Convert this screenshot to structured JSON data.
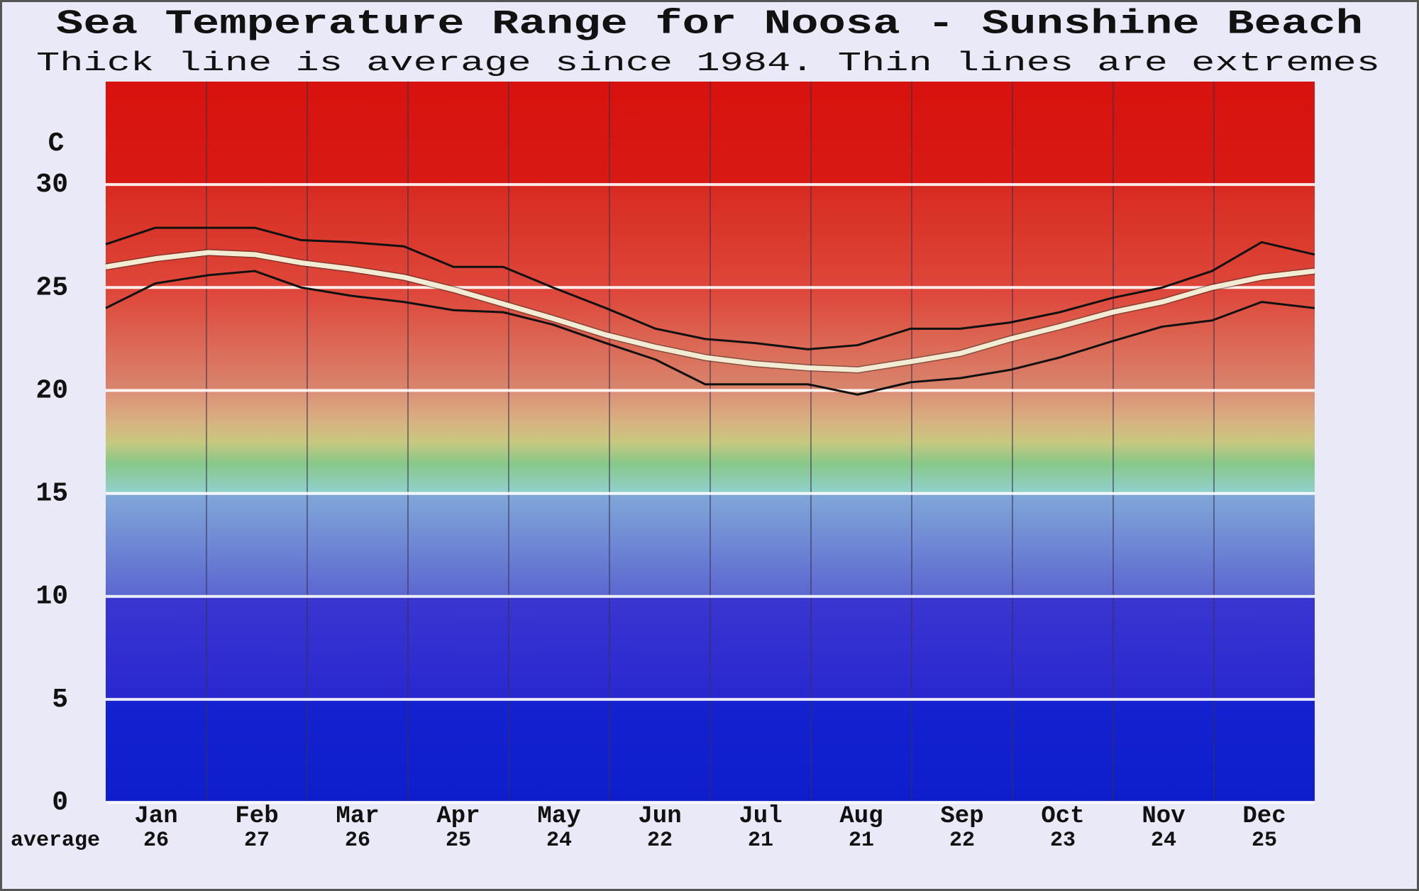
{
  "chart_data": {
    "type": "line",
    "title": "Sea Temperature Range for Noosa - Sunshine Beach",
    "subtitle": "Thick line is average since 1984. Thin lines are extremes",
    "y_label": "C",
    "categories": [
      "Jan",
      "Feb",
      "Mar",
      "Apr",
      "May",
      "Jun",
      "Jul",
      "Aug",
      "Sep",
      "Oct",
      "Nov",
      "Dec"
    ],
    "average_label": "average",
    "monthly_averages": [
      26,
      27,
      26,
      25,
      24,
      22,
      21,
      21,
      22,
      23,
      24,
      25
    ],
    "x": [
      0,
      15,
      31,
      45,
      59,
      74,
      90,
      105,
      120,
      135,
      151,
      166,
      181,
      196,
      212,
      227,
      243,
      258,
      273,
      288,
      304,
      319,
      334,
      349,
      365
    ],
    "xlim": [
      0,
      365
    ],
    "ylim": [
      0,
      35
    ],
    "yticks": [
      0,
      5,
      10,
      15,
      20,
      25,
      30
    ],
    "grid": true,
    "series": [
      {
        "color": "#f3ecd4",
        "width": 7,
        "values": [
          26.0,
          26.4,
          26.7,
          26.6,
          26.2,
          25.9,
          25.5,
          24.9,
          24.2,
          23.5,
          22.7,
          22.1,
          21.6,
          21.3,
          21.1,
          21.0,
          21.4,
          21.8,
          22.5,
          23.1,
          23.8,
          24.3,
          25.0,
          25.5,
          25.8
        ]
      },
      {
        "color": "#111111",
        "width": 3,
        "values": [
          27.1,
          27.9,
          27.9,
          27.9,
          27.3,
          27.2,
          27.0,
          26.0,
          26.0,
          25.0,
          24.0,
          23.0,
          22.5,
          22.3,
          22.0,
          22.2,
          23.0,
          23.0,
          23.3,
          23.8,
          24.5,
          25.0,
          25.8,
          27.2,
          26.6
        ]
      },
      {
        "color": "#111111",
        "width": 3,
        "values": [
          24.0,
          25.2,
          25.6,
          25.8,
          25.0,
          24.6,
          24.3,
          23.9,
          23.8,
          23.2,
          22.3,
          21.5,
          20.3,
          20.3,
          20.3,
          19.8,
          20.4,
          20.6,
          21.0,
          21.6,
          22.4,
          23.1,
          23.4,
          24.3,
          24.0
        ]
      }
    ]
  }
}
